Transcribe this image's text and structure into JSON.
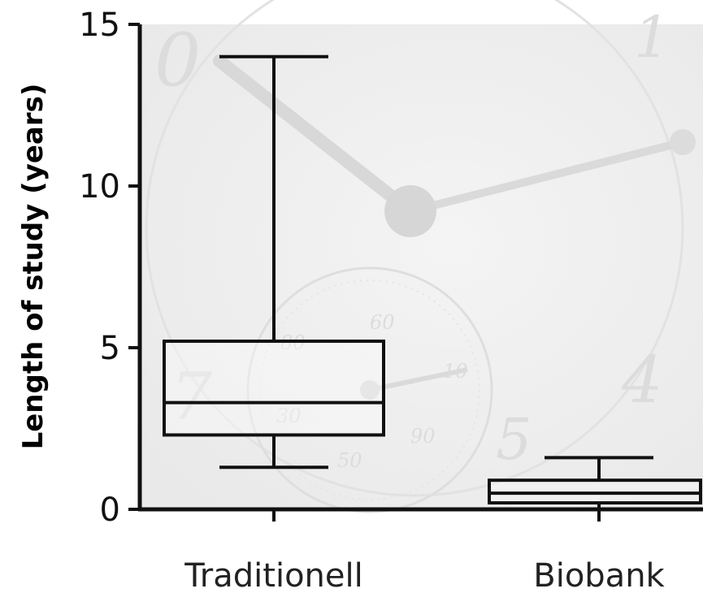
{
  "chart_data": {
    "type": "box",
    "ylabel": "Length of study (years)",
    "ylim": [
      0,
      15
    ],
    "yticks": [
      0,
      5,
      10,
      15
    ],
    "categories": [
      "Traditionell",
      "Biobank"
    ],
    "boxes": [
      {
        "name": "Traditionell",
        "min": 1.3,
        "q1": 2.3,
        "median": 3.3,
        "q3": 5.2,
        "max": 14.0
      },
      {
        "name": "Biobank",
        "min": 0.0,
        "q1": 0.2,
        "median": 0.5,
        "q3": 0.9,
        "max": 1.6
      }
    ],
    "grid": false,
    "legend": "none"
  }
}
